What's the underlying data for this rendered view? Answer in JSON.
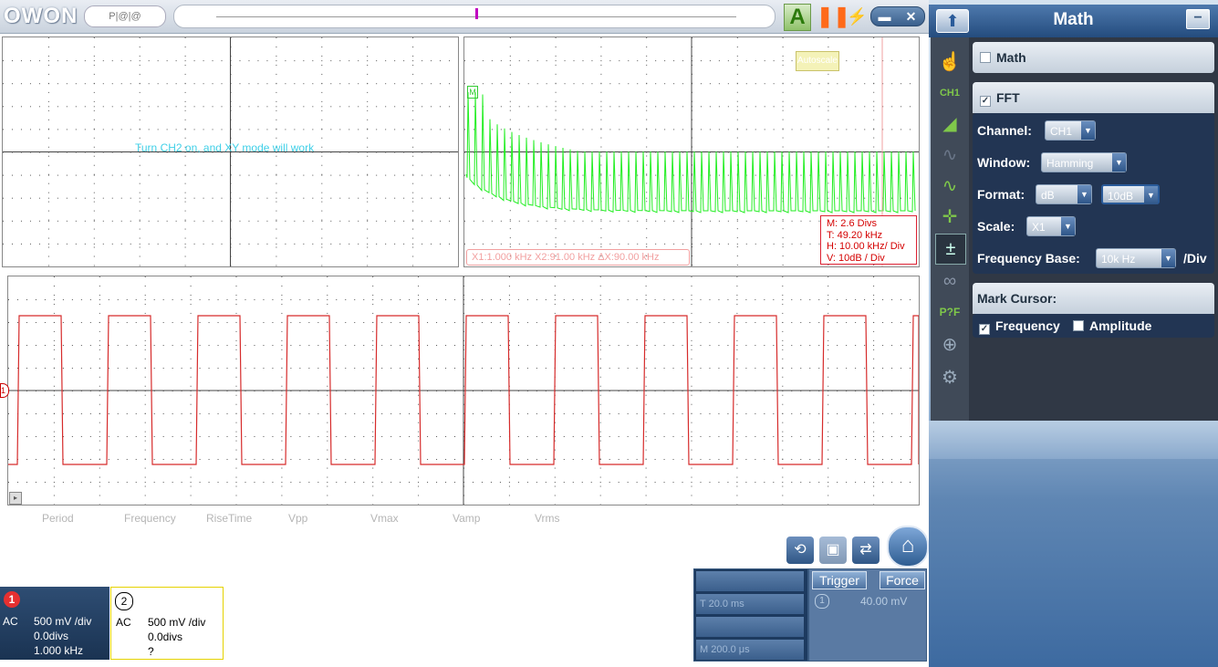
{
  "app": {
    "logo": "OWON",
    "file_label": "P|@|@",
    "min_btn": "▬",
    "close_btn": "✕"
  },
  "toolbar": {
    "autoset_label": "A",
    "pause_icon": "pause-icon",
    "bolt_icon": "bolt-icon"
  },
  "screen": {
    "xy_message": "Turn CH2 on, and XY mode will work",
    "autoscale_label": "Autoscale",
    "fft_marker": "M",
    "fft_info": [
      "M: 2.6 Divs",
      "T: 49.20 kHz",
      "H: 10.00 kHz/ Div",
      "V: 10dB  / Div"
    ],
    "cursor_info": "X1:1.000 kHz X2:91.00 kHz ΔX:90.00 kHz",
    "ch1_marker": "1"
  },
  "measurements": [
    "Period",
    "Frequency",
    "RiseTime",
    "Vpp",
    "Vmax",
    "Vamp",
    "Vrms"
  ],
  "channels": [
    {
      "num": "1",
      "coupling": "AC",
      "scale": "500 mV /div",
      "offset": "0.0divs",
      "freq": "1.000 kHz",
      "color": "#d62b2b"
    },
    {
      "num": "2",
      "coupling": "AC",
      "scale": "500 mV /div",
      "offset": "0.0divs",
      "freq": "?",
      "color": "#e5d200"
    }
  ],
  "timebase": {
    "rows": [
      "",
      "T  20.0 ms",
      "",
      "M  200.0 μs"
    ]
  },
  "trigger": {
    "trigger_label": "Trigger",
    "force_label": "Force",
    "channel": "1",
    "level": "40.00 mV"
  },
  "panel": {
    "title": "Math",
    "up_icon": "up-arrow-icon",
    "math": {
      "label": "Math",
      "checked": false
    },
    "fft": {
      "label": "FFT",
      "checked": true
    },
    "channel": {
      "label": "Channel:",
      "value": "CH1"
    },
    "window": {
      "label": "Window:",
      "value": "Hamming"
    },
    "format": {
      "label": "Format:",
      "value": "dB",
      "scale_value": "10dB"
    },
    "scale": {
      "label": "Scale:",
      "value": "X1"
    },
    "freq_base": {
      "label": "Frequency Base:",
      "value": "10k Hz",
      "unit": "/Div"
    },
    "mark_cursor": {
      "label": "Mark Cursor:",
      "frequency": "Frequency",
      "amplitude": "Amplitude"
    }
  },
  "colors": {
    "fft_trace": "#22ee22",
    "ch1_trace": "#d62b2b",
    "grid": "#555555"
  }
}
